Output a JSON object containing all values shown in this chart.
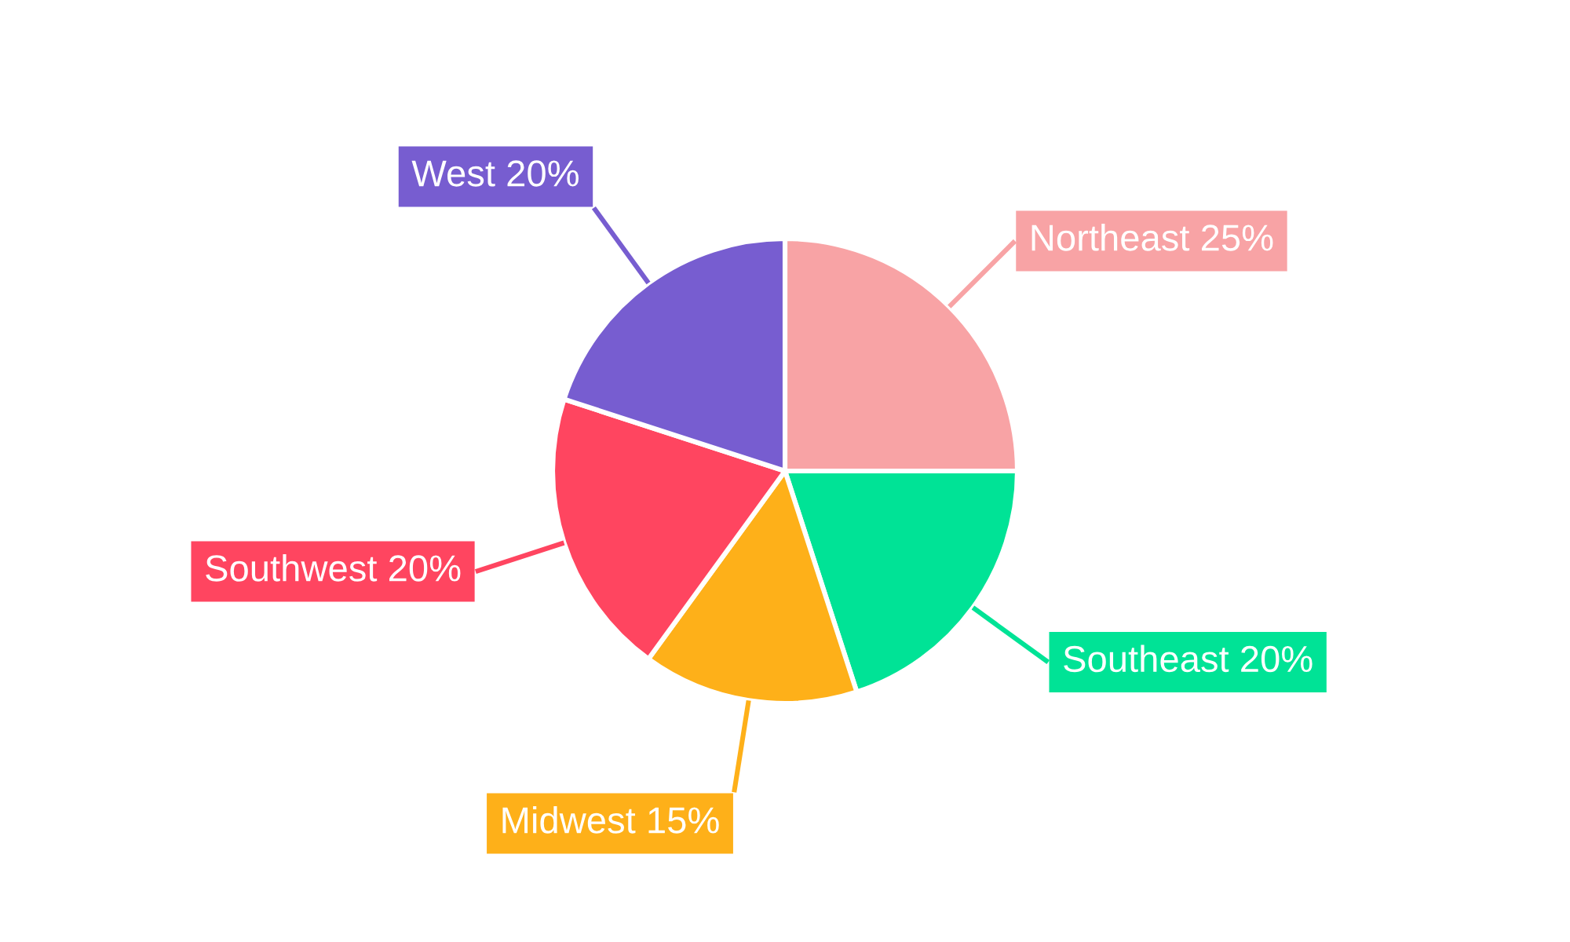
{
  "chart_data": {
    "type": "pie",
    "categories": [
      "Northeast",
      "Southeast",
      "Midwest",
      "Southwest",
      "West"
    ],
    "values": [
      25,
      20,
      15,
      20,
      20
    ],
    "colors": [
      "#f8a3a5",
      "#00e396",
      "#feb019",
      "#ff4560",
      "#775dd0"
    ],
    "value_labels": [
      "25%",
      "20%",
      "15%",
      "20%",
      "20%"
    ]
  }
}
